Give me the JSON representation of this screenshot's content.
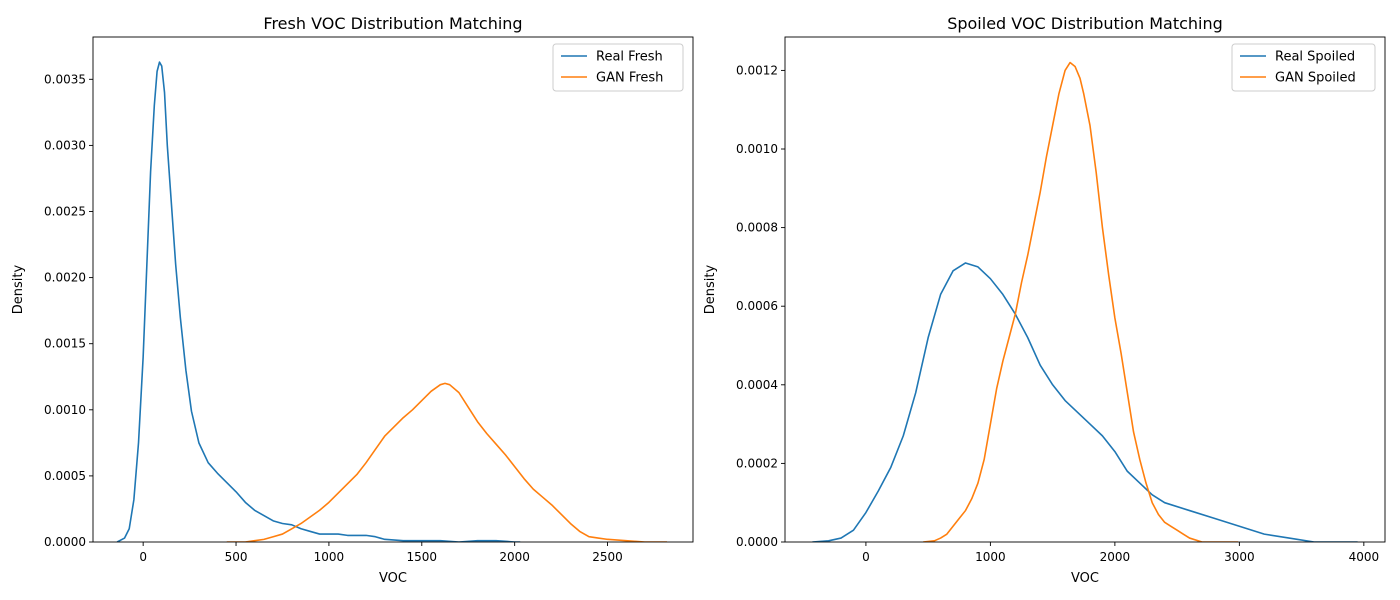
{
  "chart_data": [
    {
      "type": "line",
      "title": "Fresh VOC Distribution Matching",
      "xlabel": "VOC",
      "ylabel": "Density",
      "xlim": [
        -270,
        2960
      ],
      "ylim": [
        0,
        0.00382
      ],
      "xticks": [
        0,
        500,
        1000,
        1500,
        2000,
        2500
      ],
      "xtick_labels": [
        "0",
        "500",
        "1000",
        "1500",
        "2000",
        "2500"
      ],
      "yticks": [
        0,
        0.0005,
        0.001,
        0.0015,
        0.002,
        0.0025,
        0.003,
        0.0035
      ],
      "ytick_labels": [
        "0.0000",
        "0.0005",
        "0.0010",
        "0.0015",
        "0.0020",
        "0.0025",
        "0.0030",
        "0.0035"
      ],
      "grid": false,
      "legend": "upper right",
      "series": [
        {
          "name": "Real Fresh",
          "color": "#1f77b4",
          "points": [
            [
              -140,
              0
            ],
            [
              -100,
              3e-05
            ],
            [
              -75,
              0.0001
            ],
            [
              -50,
              0.00032
            ],
            [
              -25,
              0.00075
            ],
            [
              0,
              0.0014
            ],
            [
              20,
              0.0021
            ],
            [
              40,
              0.0028
            ],
            [
              60,
              0.0033
            ],
            [
              75,
              0.00356
            ],
            [
              88,
              0.00363
            ],
            [
              100,
              0.0036
            ],
            [
              115,
              0.0034
            ],
            [
              130,
              0.003
            ],
            [
              150,
              0.0026
            ],
            [
              175,
              0.0021
            ],
            [
              200,
              0.0017
            ],
            [
              230,
              0.0013
            ],
            [
              260,
              0.00099
            ],
            [
              300,
              0.00075
            ],
            [
              350,
              0.0006
            ],
            [
              400,
              0.00052
            ],
            [
              450,
              0.00045
            ],
            [
              500,
              0.00038
            ],
            [
              550,
              0.0003
            ],
            [
              600,
              0.00024
            ],
            [
              650,
              0.0002
            ],
            [
              700,
              0.00016
            ],
            [
              750,
              0.00014
            ],
            [
              800,
              0.00013
            ],
            [
              850,
              0.0001
            ],
            [
              900,
              8e-05
            ],
            [
              950,
              6e-05
            ],
            [
              1000,
              6e-05
            ],
            [
              1050,
              6e-05
            ],
            [
              1100,
              5e-05
            ],
            [
              1150,
              5e-05
            ],
            [
              1200,
              5e-05
            ],
            [
              1250,
              4e-05
            ],
            [
              1300,
              2e-05
            ],
            [
              1400,
              1e-05
            ],
            [
              1500,
              1e-05
            ],
            [
              1600,
              1e-05
            ],
            [
              1700,
              0.0
            ],
            [
              1800,
              1e-05
            ],
            [
              1850,
              1e-05
            ],
            [
              1900,
              1e-05
            ],
            [
              2000,
              0.0
            ],
            [
              2030,
              0.0
            ]
          ]
        },
        {
          "name": "GAN Fresh",
          "color": "#ff7f0e",
          "points": [
            [
              450,
              0
            ],
            [
              550,
              0
            ],
            [
              600,
              1e-05
            ],
            [
              650,
              2e-05
            ],
            [
              700,
              4e-05
            ],
            [
              750,
              6e-05
            ],
            [
              800,
              0.0001
            ],
            [
              850,
              0.00014
            ],
            [
              900,
              0.00019
            ],
            [
              950,
              0.00024
            ],
            [
              1000,
              0.0003
            ],
            [
              1050,
              0.00037
            ],
            [
              1100,
              0.00044
            ],
            [
              1150,
              0.00051
            ],
            [
              1200,
              0.0006
            ],
            [
              1250,
              0.0007
            ],
            [
              1300,
              0.0008
            ],
            [
              1350,
              0.00087
            ],
            [
              1400,
              0.00094
            ],
            [
              1450,
              0.001
            ],
            [
              1500,
              0.00107
            ],
            [
              1550,
              0.00114
            ],
            [
              1600,
              0.00119
            ],
            [
              1625,
              0.0012
            ],
            [
              1650,
              0.00119
            ],
            [
              1700,
              0.00113
            ],
            [
              1750,
              0.00102
            ],
            [
              1800,
              0.00091
            ],
            [
              1850,
              0.00082
            ],
            [
              1900,
              0.00074
            ],
            [
              1950,
              0.00066
            ],
            [
              2000,
              0.00057
            ],
            [
              2050,
              0.00048
            ],
            [
              2100,
              0.0004
            ],
            [
              2150,
              0.00034
            ],
            [
              2200,
              0.00028
            ],
            [
              2250,
              0.00021
            ],
            [
              2300,
              0.00014
            ],
            [
              2350,
              8e-05
            ],
            [
              2400,
              4e-05
            ],
            [
              2450,
              3e-05
            ],
            [
              2500,
              2e-05
            ],
            [
              2600,
              1e-05
            ],
            [
              2700,
              0.0
            ],
            [
              2820,
              0.0
            ]
          ]
        }
      ]
    },
    {
      "type": "line",
      "title": "Spoiled VOC Distribution Matching",
      "xlabel": "VOC",
      "ylabel": "Density",
      "xlim": [
        -650,
        4170
      ],
      "ylim": [
        0,
        0.001285
      ],
      "xticks": [
        0,
        1000,
        2000,
        3000,
        4000
      ],
      "xtick_labels": [
        "0",
        "1000",
        "2000",
        "3000",
        "4000"
      ],
      "yticks": [
        0,
        0.0002,
        0.0004,
        0.0006,
        0.0008,
        0.001,
        0.0012
      ],
      "ytick_labels": [
        "0.0000",
        "0.0002",
        "0.0004",
        "0.0006",
        "0.0008",
        "0.0010",
        "0.0012"
      ],
      "grid": false,
      "legend": "upper right",
      "series": [
        {
          "name": "Real Spoiled",
          "color": "#1f77b4",
          "points": [
            [
              -430,
              0
            ],
            [
              -300,
              3e-06
            ],
            [
              -200,
              1e-05
            ],
            [
              -100,
              3e-05
            ],
            [
              0,
              7.5e-05
            ],
            [
              100,
              0.00013
            ],
            [
              200,
              0.00019
            ],
            [
              300,
              0.00027
            ],
            [
              400,
              0.00038
            ],
            [
              500,
              0.00052
            ],
            [
              600,
              0.00063
            ],
            [
              700,
              0.00069
            ],
            [
              800,
              0.00071
            ],
            [
              900,
              0.0007
            ],
            [
              1000,
              0.00067
            ],
            [
              1100,
              0.00063
            ],
            [
              1200,
              0.00058
            ],
            [
              1300,
              0.00052
            ],
            [
              1400,
              0.00045
            ],
            [
              1500,
              0.0004
            ],
            [
              1600,
              0.00036
            ],
            [
              1700,
              0.00033
            ],
            [
              1800,
              0.0003
            ],
            [
              1900,
              0.00027
            ],
            [
              2000,
              0.00023
            ],
            [
              2100,
              0.00018
            ],
            [
              2200,
              0.00015
            ],
            [
              2300,
              0.00012
            ],
            [
              2400,
              0.0001
            ],
            [
              2600,
              8e-05
            ],
            [
              2800,
              6e-05
            ],
            [
              3000,
              4e-05
            ],
            [
              3200,
              2e-05
            ],
            [
              3400,
              1e-05
            ],
            [
              3600,
              0.0
            ],
            [
              3800,
              0.0
            ],
            [
              3950,
              0.0
            ]
          ]
        },
        {
          "name": "GAN Spoiled",
          "color": "#ff7f0e",
          "points": [
            [
              460,
              0
            ],
            [
              550,
              3e-06
            ],
            [
              600,
              1e-05
            ],
            [
              650,
              2e-05
            ],
            [
              700,
              4e-05
            ],
            [
              750,
              6e-05
            ],
            [
              800,
              8e-05
            ],
            [
              850,
              0.00011
            ],
            [
              900,
              0.00015
            ],
            [
              950,
              0.00021
            ],
            [
              1000,
              0.0003
            ],
            [
              1050,
              0.00039
            ],
            [
              1100,
              0.00046
            ],
            [
              1150,
              0.00052
            ],
            [
              1200,
              0.00058
            ],
            [
              1250,
              0.00066
            ],
            [
              1300,
              0.00073
            ],
            [
              1350,
              0.00081
            ],
            [
              1400,
              0.00089
            ],
            [
              1450,
              0.00098
            ],
            [
              1500,
              0.00106
            ],
            [
              1550,
              0.00114
            ],
            [
              1600,
              0.0012
            ],
            [
              1640,
              0.00122
            ],
            [
              1680,
              0.00121
            ],
            [
              1720,
              0.00118
            ],
            [
              1750,
              0.00114
            ],
            [
              1800,
              0.00106
            ],
            [
              1850,
              0.00094
            ],
            [
              1900,
              0.0008
            ],
            [
              1950,
              0.00068
            ],
            [
              2000,
              0.00057
            ],
            [
              2050,
              0.00048
            ],
            [
              2100,
              0.00038
            ],
            [
              2150,
              0.00028
            ],
            [
              2200,
              0.00021
            ],
            [
              2250,
              0.00015
            ],
            [
              2300,
              0.0001
            ],
            [
              2350,
              7e-05
            ],
            [
              2400,
              5e-05
            ],
            [
              2450,
              4e-05
            ],
            [
              2500,
              3e-05
            ],
            [
              2550,
              2e-05
            ],
            [
              2600,
              1e-05
            ],
            [
              2700,
              0.0
            ],
            [
              2800,
              0.0
            ],
            [
              2990,
              0.0
            ]
          ]
        }
      ]
    }
  ]
}
